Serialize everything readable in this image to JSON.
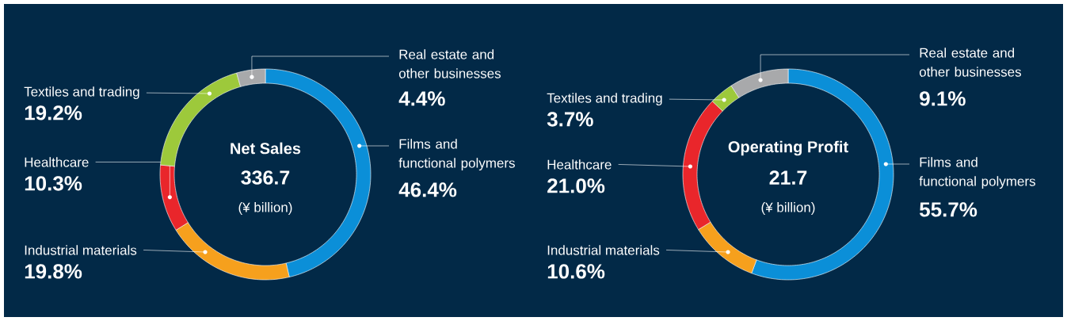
{
  "chart_data": [
    {
      "type": "donut",
      "title": "Net Sales",
      "annotations": [
        "336.7",
        "(¥ billion)"
      ],
      "categories": [
        "Films and functional polymers",
        "Industrial materials",
        "Healthcare",
        "Textiles and trading",
        "Real estate and other businesses"
      ],
      "values": [
        46.4,
        19.8,
        10.3,
        19.2,
        4.4
      ],
      "value_labels": [
        "46.4%",
        "19.8%",
        "10.3%",
        "19.2%",
        "4.4%"
      ],
      "colors": [
        "#0b8fd8",
        "#f6a01d",
        "#e9262b",
        "#9dc93b",
        "#a8a9ab"
      ]
    },
    {
      "type": "donut",
      "title": "Operating Profit",
      "annotations": [
        "21.7",
        "(¥ billion)"
      ],
      "categories": [
        "Films and functional polymers",
        "Industrial materials",
        "Healthcare",
        "Textiles and trading",
        "Real estate and other businesses"
      ],
      "values": [
        55.7,
        10.6,
        21.0,
        3.7,
        9.1
      ],
      "value_labels": [
        "55.7%",
        "10.6%",
        "21.0%",
        "3.7%",
        "9.1%"
      ],
      "colors": [
        "#0b8fd8",
        "#f6a01d",
        "#e9262b",
        "#9dc93b",
        "#a8a9ab"
      ]
    }
  ]
}
